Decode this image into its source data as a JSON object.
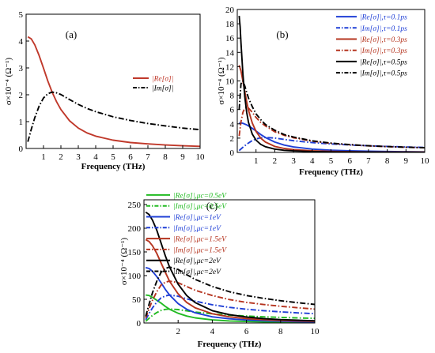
{
  "chart_data": [
    {
      "panel": "(a)",
      "type": "line",
      "xlabel": "Frequency (THz)",
      "ylabel": "σ×10⁻⁴ (Ω⁻¹)",
      "xlim": [
        0,
        10
      ],
      "ylim": [
        0,
        5
      ],
      "xticks": [
        1,
        2,
        3,
        4,
        5,
        6,
        7,
        8,
        9,
        10
      ],
      "yticks": [
        0,
        1,
        2,
        3,
        4,
        5
      ],
      "legend": "center-right",
      "series": [
        {
          "name": "|Re[σ]|",
          "color": "#c0392b",
          "dash": "solid",
          "x": [
            0.1,
            0.3,
            0.5,
            0.75,
            1,
            1.25,
            1.5,
            1.75,
            2,
            2.5,
            3,
            3.5,
            4,
            5,
            6,
            7,
            8,
            9,
            10
          ],
          "y": [
            4.16,
            4.08,
            3.86,
            3.46,
            2.99,
            2.51,
            2.09,
            1.74,
            1.45,
            1.03,
            0.76,
            0.58,
            0.46,
            0.31,
            0.22,
            0.17,
            0.13,
            0.1,
            0.08
          ]
        },
        {
          "name": "|Im[σ]|",
          "color": "#000000",
          "dash": "dashdot",
          "x": [
            0.1,
            0.3,
            0.5,
            0.75,
            1,
            1.25,
            1.5,
            1.75,
            2,
            2.5,
            3,
            3.5,
            4,
            5,
            6,
            7,
            8,
            9,
            10
          ],
          "y": [
            0.25,
            0.72,
            1.15,
            1.58,
            1.88,
            2.04,
            2.1,
            2.07,
            2.01,
            1.82,
            1.64,
            1.49,
            1.37,
            1.18,
            1.04,
            0.93,
            0.84,
            0.76,
            0.7
          ]
        }
      ]
    },
    {
      "panel": "(b)",
      "type": "line",
      "xlabel": "Frequency (THz)",
      "ylabel": "σ×10⁻⁴ (Ω⁻¹)",
      "xlim": [
        0,
        10
      ],
      "ylim": [
        0,
        20
      ],
      "xticks": [
        1,
        2,
        3,
        4,
        5,
        6,
        7,
        8,
        9,
        10
      ],
      "yticks": [
        0,
        2,
        4,
        6,
        8,
        10,
        12,
        14,
        16,
        18,
        20
      ],
      "legend": "top-right",
      "series": [
        {
          "name": "|Re[σ]|,τ=0.1ps",
          "color": "#1f3fd6",
          "dash": "solid",
          "x": [
            0.1,
            0.3,
            0.5,
            0.75,
            1,
            1.25,
            1.5,
            2,
            2.5,
            3,
            4,
            5,
            6,
            7,
            8,
            9,
            10
          ],
          "y": [
            4.15,
            4.08,
            3.86,
            3.46,
            2.99,
            2.51,
            2.09,
            1.45,
            1.03,
            0.76,
            0.46,
            0.31,
            0.22,
            0.17,
            0.13,
            0.1,
            0.08
          ]
        },
        {
          "name": "|Im[σ]|,τ=0.1ps",
          "color": "#1f3fd6",
          "dash": "dashdot",
          "x": [
            0.1,
            0.3,
            0.5,
            0.75,
            1,
            1.25,
            1.5,
            2,
            2.5,
            3,
            4,
            5,
            6,
            7,
            8,
            9,
            10
          ],
          "y": [
            0.25,
            0.72,
            1.15,
            1.58,
            1.88,
            2.04,
            2.1,
            2.01,
            1.82,
            1.64,
            1.37,
            1.18,
            1.04,
            0.93,
            0.84,
            0.76,
            0.7
          ]
        },
        {
          "name": "|Re[σ]|,τ=0.3ps",
          "color": "#b5341f",
          "dash": "solid",
          "x": [
            0.1,
            0.2,
            0.3,
            0.4,
            0.5,
            0.6,
            0.8,
            1,
            1.25,
            1.5,
            2,
            2.5,
            3,
            4,
            5,
            6,
            7,
            8,
            9,
            10
          ],
          "y": [
            12.2,
            11.4,
            10.0,
            8.5,
            7.1,
            5.9,
            4.1,
            2.95,
            2.0,
            1.45,
            0.84,
            0.55,
            0.39,
            0.22,
            0.14,
            0.1,
            0.07,
            0.06,
            0.05,
            0.04
          ]
        },
        {
          "name": "|Im[σ]|,τ=0.3ps",
          "color": "#b5341f",
          "dash": "dashdot",
          "x": [
            0.1,
            0.2,
            0.3,
            0.4,
            0.5,
            0.6,
            0.8,
            1,
            1.25,
            1.5,
            2,
            2.5,
            3,
            4,
            5,
            6,
            7,
            8,
            9,
            10
          ],
          "y": [
            2.3,
            4.3,
            5.6,
            6.2,
            6.3,
            6.2,
            5.6,
            4.9,
            4.2,
            3.7,
            2.9,
            2.4,
            2.05,
            1.57,
            1.27,
            1.07,
            0.92,
            0.81,
            0.72,
            0.65
          ]
        },
        {
          "name": "|Re[σ]|,τ=0.5ps",
          "color": "#000000",
          "dash": "solid",
          "x": [
            0.1,
            0.15,
            0.2,
            0.3,
            0.4,
            0.5,
            0.6,
            0.8,
            1,
            1.25,
            1.5,
            2,
            2.5,
            3,
            4,
            5,
            6,
            7,
            8,
            9,
            10
          ],
          "y": [
            19.1,
            17.6,
            15.3,
            11.0,
            7.8,
            5.6,
            4.2,
            2.55,
            1.72,
            1.13,
            0.8,
            0.46,
            0.3,
            0.21,
            0.12,
            0.08,
            0.05,
            0.04,
            0.03,
            0.03,
            0.02
          ]
        },
        {
          "name": "|Im[σ]|,τ=0.5ps",
          "color": "#000000",
          "dash": "dashdot",
          "x": [
            0.1,
            0.2,
            0.3,
            0.4,
            0.5,
            0.6,
            0.8,
            1,
            1.25,
            1.5,
            2,
            2.5,
            3,
            4,
            5,
            6,
            7,
            8,
            9,
            10
          ],
          "y": [
            6.0,
            9.6,
            10.0,
            9.3,
            8.4,
            7.6,
            6.4,
            5.4,
            4.6,
            3.9,
            3.1,
            2.5,
            2.15,
            1.62,
            1.3,
            1.09,
            0.93,
            0.82,
            0.73,
            0.66
          ]
        }
      ]
    },
    {
      "panel": "(c)",
      "type": "line",
      "xlabel": "Frequency (THz)",
      "ylabel": "σ×10⁻⁴ (Ω⁻¹)",
      "xlim": [
        0,
        10
      ],
      "ylim": [
        0,
        260
      ],
      "xticks": [
        2,
        4,
        6,
        8,
        10
      ],
      "yticks": [
        0,
        50,
        100,
        150,
        200,
        250
      ],
      "legend": "top-right",
      "series": [
        {
          "name": "|Re[σ]|,μc=0.5eV",
          "color": "#22bb22",
          "dash": "solid",
          "x": [
            0.1,
            0.3,
            0.5,
            0.75,
            1,
            1.25,
            1.5,
            2,
            2.5,
            3,
            4,
            5,
            6,
            7,
            8,
            9,
            10
          ],
          "y": [
            59,
            58,
            54,
            48,
            42,
            35,
            29,
            20.5,
            14.6,
            10.8,
            6.5,
            4.4,
            3.1,
            2.3,
            1.8,
            1.4,
            1.2
          ]
        },
        {
          "name": "|Im[σ]|,μc=0.5eV",
          "color": "#22bb22",
          "dash": "dashdot",
          "x": [
            0.1,
            0.3,
            0.5,
            0.75,
            1,
            1.25,
            1.5,
            2,
            2.5,
            3,
            4,
            5,
            6,
            7,
            8,
            9,
            10
          ],
          "y": [
            3.5,
            10,
            16,
            22,
            26.5,
            28.6,
            29.5,
            28.3,
            25.6,
            23,
            19.3,
            16.6,
            14.6,
            13,
            11.8,
            10.7,
            9.8
          ]
        },
        {
          "name": "|Re[σ]|,μc=1eV",
          "color": "#1f3fd6",
          "dash": "solid",
          "x": [
            0.1,
            0.3,
            0.5,
            0.75,
            1,
            1.25,
            1.5,
            2,
            2.5,
            3,
            4,
            5,
            6,
            7,
            8,
            9,
            10
          ],
          "y": [
            117,
            115,
            109,
            98,
            85,
            71,
            59,
            41,
            29,
            21.5,
            13,
            8.8,
            6.3,
            4.7,
            3.6,
            2.9,
            2.4
          ]
        },
        {
          "name": "|Im[σ]|,μc=1eV",
          "color": "#1f3fd6",
          "dash": "dashdot",
          "x": [
            0.1,
            0.3,
            0.5,
            0.75,
            1,
            1.25,
            1.5,
            2,
            2.5,
            3,
            4,
            5,
            6,
            7,
            8,
            9,
            10
          ],
          "y": [
            7,
            20,
            32,
            44,
            53,
            57,
            59,
            56.5,
            51,
            46,
            38.5,
            33,
            29,
            26,
            23.5,
            21.4,
            19.6
          ]
        },
        {
          "name": "|Re[σ]|,μc=1.5eV",
          "color": "#b5341f",
          "dash": "solid",
          "x": [
            0.1,
            0.3,
            0.5,
            0.75,
            1,
            1.25,
            1.5,
            2,
            2.5,
            3,
            4,
            5,
            6,
            7,
            8,
            9,
            10
          ],
          "y": [
            176,
            172,
            163,
            147,
            127,
            107,
            88,
            61.5,
            43.5,
            32,
            19.5,
            13,
            9.4,
            7,
            5.4,
            4.3,
            3.5
          ]
        },
        {
          "name": "|Im[σ]|,μc=1.5eV",
          "color": "#b5341f",
          "dash": "dashdot",
          "x": [
            0.1,
            0.3,
            0.5,
            0.75,
            1,
            1.25,
            1.5,
            2,
            2.5,
            3,
            4,
            5,
            6,
            7,
            8,
            9,
            10
          ],
          "y": [
            10.5,
            30,
            48,
            66,
            80,
            86,
            88.5,
            85,
            77,
            69,
            58,
            49.5,
            43.5,
            39,
            35.3,
            32.1,
            29.4
          ]
        },
        {
          "name": "|Re[σ]|,μc=2eV",
          "color": "#000000",
          "dash": "solid",
          "x": [
            0.1,
            0.3,
            0.5,
            0.75,
            1,
            1.25,
            1.5,
            2,
            2.5,
            3,
            4,
            5,
            6,
            7,
            8,
            9,
            10
          ],
          "y": [
            234,
            229,
            217,
            196,
            169,
            142,
            118,
            82,
            58,
            43,
            26,
            17.6,
            12.6,
            9.4,
            7.2,
            5.8,
            4.7
          ]
        },
        {
          "name": "|Im[σ]|,μc=2eV",
          "color": "#000000",
          "dash": "dashdot",
          "x": [
            0.1,
            0.3,
            0.5,
            0.75,
            1,
            1.25,
            1.5,
            2,
            2.5,
            3,
            4,
            5,
            6,
            7,
            8,
            9,
            10
          ],
          "y": [
            14,
            40,
            64,
            88,
            107,
            115,
            118,
            113,
            102,
            92,
            77,
            66,
            58,
            52,
            47,
            42.8,
            39.2
          ]
        }
      ]
    }
  ]
}
